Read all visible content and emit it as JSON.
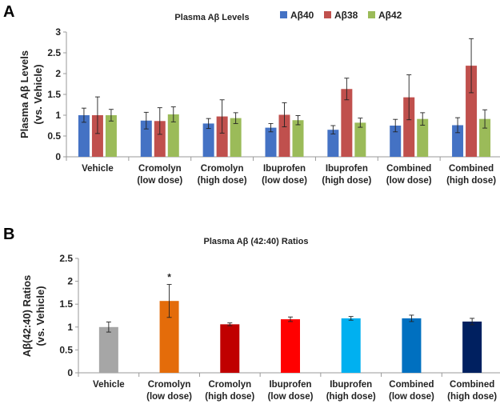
{
  "chart_data": [
    {
      "panel": "A",
      "type": "bar",
      "title": "Plasma Aβ Levels",
      "ylabel_lines": [
        "Plasma Aβ Levels",
        "(vs. Vehicle)"
      ],
      "xlabel": "",
      "ylim": [
        0,
        3
      ],
      "yticks": [
        "0",
        "0.5",
        "1",
        "1.5",
        "2",
        "2.5",
        "3"
      ],
      "legend_position": "top",
      "categories": [
        [
          "Vehicle"
        ],
        [
          "Cromolyn",
          "(low dose)"
        ],
        [
          "Cromolyn",
          "(high dose)"
        ],
        [
          "Ibuprofen",
          "(low dose)"
        ],
        [
          "Ibuprofen",
          "(high dose)"
        ],
        [
          "Combined",
          "(low dose)"
        ],
        [
          "Combined",
          "(high dose)"
        ]
      ],
      "series": [
        {
          "name": "Aβ40",
          "color": "#4472c4",
          "values": [
            1.0,
            0.87,
            0.8,
            0.7,
            0.65,
            0.75,
            0.76
          ],
          "errors": [
            0.17,
            0.2,
            0.12,
            0.1,
            0.1,
            0.15,
            0.18
          ]
        },
        {
          "name": "Aβ38",
          "color": "#c0504d",
          "values": [
            1.0,
            0.86,
            0.97,
            1.01,
            1.63,
            1.43,
            2.19
          ],
          "errors": [
            0.44,
            0.32,
            0.4,
            0.29,
            0.26,
            0.54,
            0.65
          ]
        },
        {
          "name": "Aβ42",
          "color": "#9bbb59",
          "values": [
            1.0,
            1.02,
            0.93,
            0.88,
            0.82,
            0.91,
            0.91
          ],
          "errors": [
            0.14,
            0.18,
            0.13,
            0.11,
            0.11,
            0.15,
            0.22
          ]
        }
      ]
    },
    {
      "panel": "B",
      "type": "bar",
      "title": "Plasma Aβ (42:40) Ratios",
      "ylabel_lines": [
        "Aβ(42:40) Ratios",
        "(vs. Vehicle)"
      ],
      "xlabel": "",
      "ylim": [
        0,
        2.5
      ],
      "yticks": [
        "0",
        "0.5",
        "1",
        "1.5",
        "2",
        "2.5"
      ],
      "categories": [
        [
          "Vehicle"
        ],
        [
          "Cromolyn",
          "(low dose)"
        ],
        [
          "Cromolyn",
          "(high dose)"
        ],
        [
          "Ibuprofen",
          "(low dose)"
        ],
        [
          "Ibuprofen",
          "(high dose)"
        ],
        [
          "Combined",
          "(low dose)"
        ],
        [
          "Combined",
          "(high dose)"
        ]
      ],
      "values": [
        1.0,
        1.57,
        1.06,
        1.17,
        1.19,
        1.19,
        1.12
      ],
      "errors": [
        0.11,
        0.36,
        0.03,
        0.05,
        0.04,
        0.07,
        0.07
      ],
      "colors": [
        "#a6a6a6",
        "#e46c0a",
        "#c00000",
        "#ff0000",
        "#00b0f0",
        "#0070c0",
        "#002060"
      ],
      "annotations": [
        {
          "category_index": 1,
          "text": "*"
        }
      ]
    }
  ]
}
